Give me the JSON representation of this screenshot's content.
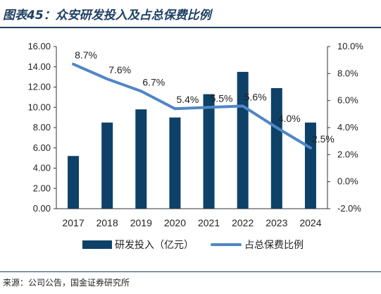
{
  "header": {
    "title": "图表45：众安研发投入及占总保费比例"
  },
  "footer": {
    "source": "来源：公司公告，国金证券研究所"
  },
  "colors": {
    "bar": "#0d4168",
    "line": "#4f86c6",
    "rule": "#1f3f63"
  },
  "chart_data": {
    "type": "bar",
    "categories": [
      "2017",
      "2018",
      "2019",
      "2020",
      "2021",
      "2022",
      "2023",
      "2024"
    ],
    "series": [
      {
        "name": "研发投入（亿元）",
        "type": "bar",
        "axis": "left",
        "values": [
          5.2,
          8.5,
          9.8,
          9.0,
          11.3,
          13.5,
          11.9,
          8.5
        ]
      },
      {
        "name": "占总保费比例",
        "type": "line",
        "axis": "right",
        "values": [
          8.7,
          7.6,
          6.7,
          5.4,
          5.5,
          5.6,
          4.0,
          2.5
        ],
        "labels": [
          "8.7%",
          "7.6%",
          "6.7%",
          "5.4%",
          "5.5%",
          "5.6%",
          "4.0%",
          "2.5%"
        ]
      }
    ],
    "y_left": {
      "lim": [
        0,
        16
      ],
      "ticks": [
        "0.00",
        "2.00",
        "4.00",
        "6.00",
        "8.00",
        "10.00",
        "12.00",
        "14.00",
        "16.00"
      ]
    },
    "y_right": {
      "lim": [
        -2,
        10
      ],
      "ticks": [
        "-2.0%",
        "0.0%",
        "2.0%",
        "4.0%",
        "6.0%",
        "8.0%",
        "10.0%"
      ]
    },
    "grid": false,
    "legend": "bottom"
  }
}
